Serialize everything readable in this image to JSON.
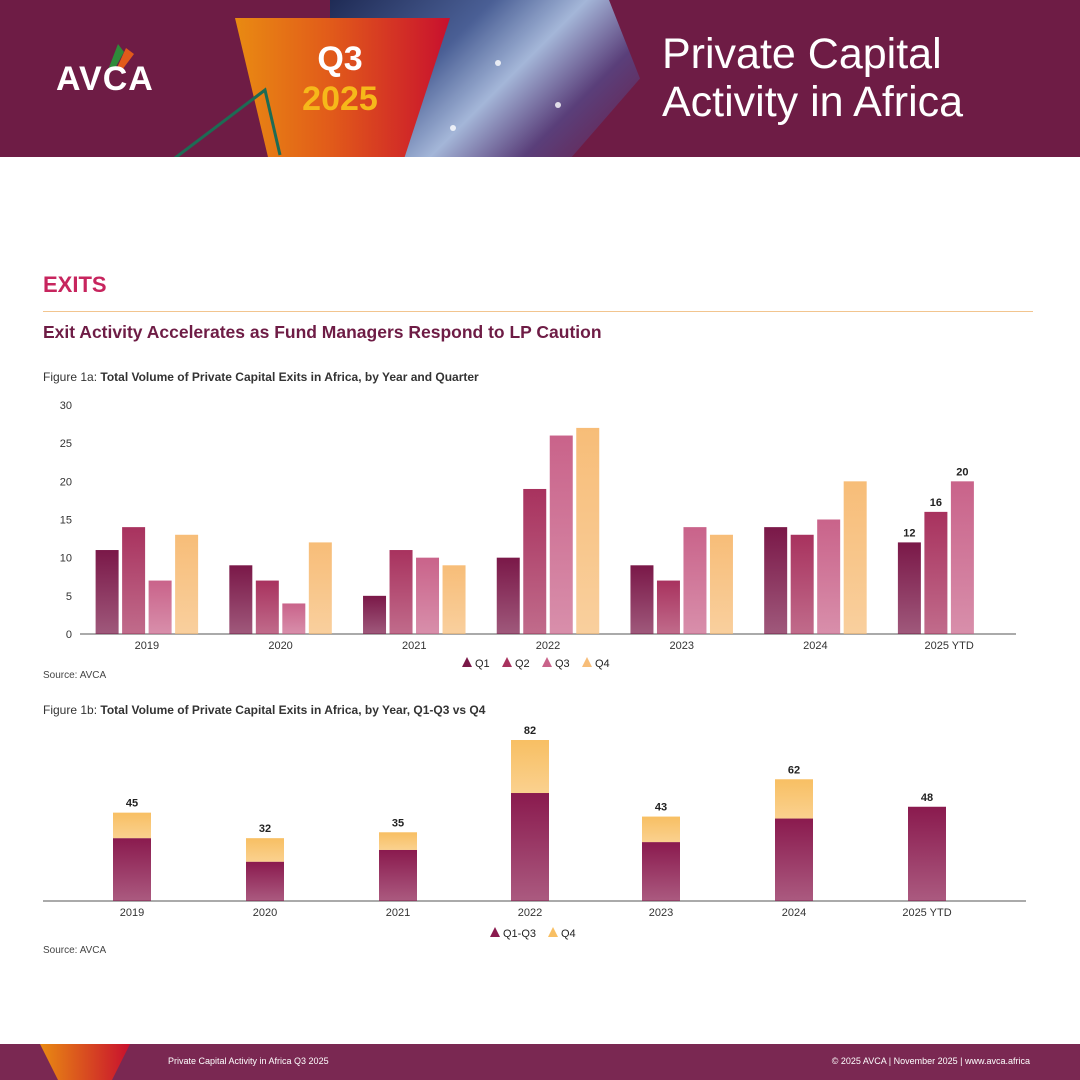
{
  "header": {
    "logo": "AVCA",
    "badge_quarter": "Q3",
    "badge_year": "2025",
    "title_line1": "Private Capital",
    "title_line2": "Activity in Africa"
  },
  "section": {
    "title": "EXITS",
    "subtitle": "Exit Activity Accelerates as Fund Managers Respond to LP Caution"
  },
  "figure1a": {
    "caption_prefix": "Figure 1a: ",
    "caption_bold": "Total Volume of Private Capital Exits in Africa, by Year and Quarter",
    "source": "Source: AVCA"
  },
  "figure1b": {
    "caption_prefix": "Figure 1b: ",
    "caption_bold": "Total Volume of Private Capital Exits in Africa, by Year, Q1-Q3 vs Q4",
    "source": "Source: AVCA"
  },
  "colors": {
    "q1": "#7a1848",
    "q2": "#a8325e",
    "q3": "#c9638a",
    "q4": "#f7bd78",
    "stack_q1q3": "#8a1a4e",
    "stack_q4": "#f8bf63"
  },
  "chart_data": [
    {
      "type": "bar",
      "title": "Total Volume of Private Capital Exits in Africa, by Year and Quarter",
      "categories": [
        "2019",
        "2020",
        "2021",
        "2022",
        "2023",
        "2024",
        "2025 YTD"
      ],
      "series": [
        {
          "name": "Q1",
          "values": [
            11,
            9,
            5,
            10,
            9,
            14,
            12
          ]
        },
        {
          "name": "Q2",
          "values": [
            14,
            7,
            11,
            19,
            7,
            13,
            16
          ]
        },
        {
          "name": "Q3",
          "values": [
            7,
            4,
            10,
            26,
            14,
            15,
            20
          ]
        },
        {
          "name": "Q4",
          "values": [
            13,
            12,
            9,
            27,
            13,
            20,
            null
          ]
        }
      ],
      "data_labels": {
        "category": "2025 YTD",
        "values": [
          "12",
          "16",
          "20"
        ]
      },
      "yticks": [
        "0",
        "5",
        "10",
        "15",
        "20",
        "25",
        "30"
      ],
      "ylim": [
        0,
        30
      ],
      "xlabel": "",
      "ylabel": "",
      "legend": [
        "Q1",
        "Q2",
        "Q3",
        "Q4"
      ],
      "legend_position": "bottom"
    },
    {
      "type": "bar",
      "stacked": true,
      "title": "Total Volume of Private Capital Exits in Africa, by Year, Q1-Q3 vs Q4",
      "categories": [
        "2019",
        "2020",
        "2021",
        "2022",
        "2023",
        "2024",
        "2025 YTD"
      ],
      "series": [
        {
          "name": "Q1-Q3",
          "values": [
            32,
            20,
            26,
            55,
            30,
            42,
            48
          ]
        },
        {
          "name": "Q4",
          "values": [
            13,
            12,
            9,
            27,
            13,
            20,
            0
          ]
        }
      ],
      "totals": [
        "45",
        "32",
        "35",
        "82",
        "43",
        "62",
        "48"
      ],
      "ylim": [
        0,
        82
      ],
      "legend": [
        "Q1-Q3",
        "Q4"
      ],
      "legend_position": "bottom"
    }
  ],
  "footer": {
    "left": "Private Capital Activity in Africa Q3 2025",
    "right": "© 2025 AVCA  |  November 2025  |  www.avca.africa"
  }
}
